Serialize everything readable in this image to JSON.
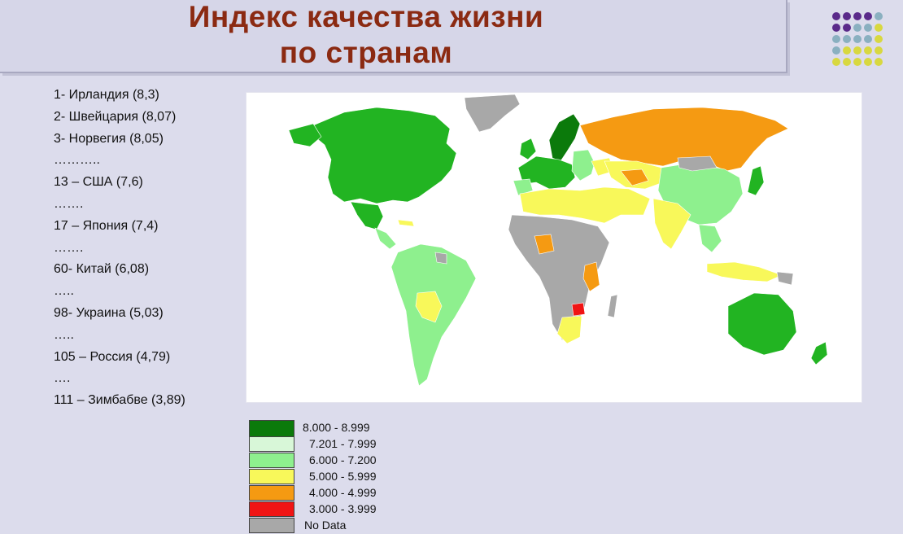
{
  "slide": {
    "title_line1": "Индекс качества жизни",
    "title_line2": "по странам"
  },
  "ranking": [
    "1- Ирландия (8,3)",
    "2- Швейцария (8,07)",
    "3- Норвегия (8,05)",
    "………..",
    "13 – США (7,6)",
    "…….",
    "17 – Япония (7,4)",
    "…….",
    "60- Китай (6,08)",
    "…..",
    "98- Украина (5,03)",
    "…..",
    "105 – Россия (4,79)",
    "….",
    "111 – Зимбабве (3,89)"
  ],
  "legend": [
    {
      "label": "8.000 - 8.999",
      "color": "#0b7a0b"
    },
    {
      "label": "7.201 - 7.999",
      "color": "#d8f7d8"
    },
    {
      "label": "6.000 - 7.200",
      "color": "#8ef08e"
    },
    {
      "label": "5.000 - 5.999",
      "color": "#f8f85a"
    },
    {
      "label": "4.000 - 4.999",
      "color": "#f59a12"
    },
    {
      "label": "3.000 - 3.999",
      "color": "#f01414"
    },
    {
      "label": "No Data",
      "color": "#a8a8a8"
    }
  ],
  "colors": {
    "title": "#8b2a12",
    "ocean": "#ffffff",
    "dark_green": "#0b7a0b",
    "green": "#22b422",
    "light_green": "#8ef08e",
    "yellow": "#f8f85a",
    "orange": "#f59a12",
    "red": "#f01414",
    "gray": "#a8a8a8"
  },
  "map_regions": [
    {
      "name": "canada-usa",
      "color": "green"
    },
    {
      "name": "greenland",
      "color": "gray"
    },
    {
      "name": "mexico",
      "color": "green"
    },
    {
      "name": "central-america",
      "color": "light_green"
    },
    {
      "name": "south-america",
      "color": "light_green"
    },
    {
      "name": "bolivia",
      "color": "yellow"
    },
    {
      "name": "scandinavia",
      "color": "dark_green"
    },
    {
      "name": "western-europe",
      "color": "green"
    },
    {
      "name": "eastern-europe",
      "color": "light_green"
    },
    {
      "name": "russia",
      "color": "orange"
    },
    {
      "name": "kazakhstan",
      "color": "yellow"
    },
    {
      "name": "china",
      "color": "light_green"
    },
    {
      "name": "japan",
      "color": "green"
    },
    {
      "name": "north-africa-middle-east",
      "color": "yellow"
    },
    {
      "name": "india",
      "color": "yellow"
    },
    {
      "name": "sub-saharan-africa",
      "color": "gray"
    },
    {
      "name": "nigeria",
      "color": "orange"
    },
    {
      "name": "east-africa",
      "color": "orange"
    },
    {
      "name": "zimbabwe",
      "color": "red"
    },
    {
      "name": "south-africa",
      "color": "yellow"
    },
    {
      "name": "indonesia",
      "color": "yellow"
    },
    {
      "name": "australia",
      "color": "green"
    },
    {
      "name": "new-zealand",
      "color": "green"
    }
  ]
}
